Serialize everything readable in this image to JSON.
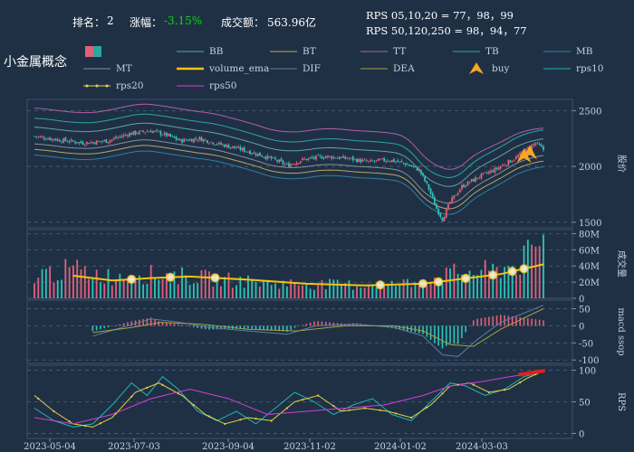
{
  "header": {
    "rank_label": "排名：",
    "rank_value": "2",
    "change_label": "涨幅：",
    "change_value": "-3.15%",
    "volume_label": "成交额：",
    "volume_value": "563.96亿",
    "rps_line1": "RPS 05,10,20 = 77，98，99",
    "rps_line2": "RPS 50,120,250 = 98，94，77",
    "change_color": "#00e000"
  },
  "title": "小金属概念",
  "legend": [
    {
      "label": "",
      "color": "#e0607a",
      "kind": "box"
    },
    {
      "label": "BB",
      "color": "#5fa6a6",
      "kind": "line"
    },
    {
      "label": "BT",
      "color": "#b8a860",
      "kind": "line"
    },
    {
      "label": "TT",
      "color": "#b060a8",
      "kind": "line"
    },
    {
      "label": "TB",
      "color": "#2aa8a0",
      "kind": "line"
    },
    {
      "label": "MB",
      "color": "#3080a0",
      "kind": "line"
    },
    {
      "label": "MT",
      "color": "#8a9098",
      "kind": "line"
    },
    {
      "label": "volume_ema",
      "color": "#f2c40f",
      "kind": "thick"
    },
    {
      "label": "DIF",
      "color": "#5a7fa0",
      "kind": "line"
    },
    {
      "label": "DEA",
      "color": "#a8a040",
      "kind": "line"
    },
    {
      "label": "buy",
      "color": "#f5a623",
      "kind": "triangle"
    },
    {
      "label": "rps10",
      "color": "#1fb5b5",
      "kind": "line"
    },
    {
      "label": "rps20",
      "color": "#e8d040",
      "kind": "dots"
    },
    {
      "label": "rps50",
      "color": "#d040d0",
      "kind": "line"
    }
  ],
  "chart_data": [
    {
      "type": "candlestick",
      "panel": "price",
      "ylabel": "股价",
      "ylim": [
        1450,
        2600
      ],
      "yticks": [
        1500,
        2000,
        2500
      ],
      "grid": true,
      "xticks": [
        "2023-05-04",
        "2023-07-03",
        "2023-09-04",
        "2023-11-02",
        "2024-01-02",
        "2024-03-03"
      ],
      "close_series": [
        {
          "t": 0,
          "v": 2270
        },
        {
          "t": 12,
          "v": 2240
        },
        {
          "t": 25,
          "v": 2210
        },
        {
          "t": 38,
          "v": 2230
        },
        {
          "t": 48,
          "v": 2290
        },
        {
          "t": 60,
          "v": 2320
        },
        {
          "t": 68,
          "v": 2280
        },
        {
          "t": 75,
          "v": 2230
        },
        {
          "t": 85,
          "v": 2250
        },
        {
          "t": 95,
          "v": 2200
        },
        {
          "t": 105,
          "v": 2160
        },
        {
          "t": 115,
          "v": 2110
        },
        {
          "t": 125,
          "v": 2050
        },
        {
          "t": 130,
          "v": 2010
        },
        {
          "t": 138,
          "v": 2060
        },
        {
          "t": 150,
          "v": 2090
        },
        {
          "t": 162,
          "v": 2070
        },
        {
          "t": 172,
          "v": 2040
        },
        {
          "t": 182,
          "v": 2060
        },
        {
          "t": 190,
          "v": 2030
        },
        {
          "t": 198,
          "v": 1970
        },
        {
          "t": 203,
          "v": 1800
        },
        {
          "t": 207,
          "v": 1620
        },
        {
          "t": 210,
          "v": 1530
        },
        {
          "t": 214,
          "v": 1680
        },
        {
          "t": 220,
          "v": 1820
        },
        {
          "t": 228,
          "v": 1900
        },
        {
          "t": 238,
          "v": 1980
        },
        {
          "t": 248,
          "v": 2080
        },
        {
          "t": 254,
          "v": 2160
        },
        {
          "t": 258,
          "v": 2210
        },
        {
          "t": 262,
          "v": 2150
        }
      ],
      "buy_markers": [
        {
          "t": 252,
          "v": 2050
        },
        {
          "t": 255,
          "v": 2080
        }
      ],
      "bands": [
        "TT",
        "MT",
        "BB",
        "BT",
        "TB",
        "MB"
      ]
    },
    {
      "type": "bar",
      "panel": "volume",
      "ylabel": "成交量",
      "yticks": [
        0,
        20,
        40,
        60,
        80
      ],
      "ytick_labels": [
        "0",
        "20M",
        "40M",
        "60M",
        "80M"
      ],
      "ylim": [
        0,
        85
      ],
      "series": [
        {
          "name": "volume_ema",
          "type": "line",
          "points": [
            {
              "t": 20,
              "v": 28
            },
            {
              "t": 40,
              "v": 22
            },
            {
              "t": 60,
              "v": 25
            },
            {
              "t": 80,
              "v": 27
            },
            {
              "t": 110,
              "v": 23
            },
            {
              "t": 140,
              "v": 18
            },
            {
              "t": 170,
              "v": 16
            },
            {
              "t": 200,
              "v": 18
            },
            {
              "t": 220,
              "v": 24
            },
            {
              "t": 240,
              "v": 30
            },
            {
              "t": 262,
              "v": 42
            }
          ]
        }
      ],
      "volume_levels": [
        {
          "t": 0,
          "v": 30
        },
        {
          "t": 20,
          "v": 38
        },
        {
          "t": 40,
          "v": 28
        },
        {
          "t": 50,
          "v": 32
        },
        {
          "t": 70,
          "v": 30
        },
        {
          "t": 90,
          "v": 26
        },
        {
          "t": 120,
          "v": 20
        },
        {
          "t": 150,
          "v": 18
        },
        {
          "t": 180,
          "v": 17
        },
        {
          "t": 200,
          "v": 22
        },
        {
          "t": 215,
          "v": 32
        },
        {
          "t": 235,
          "v": 36
        },
        {
          "t": 250,
          "v": 45
        },
        {
          "t": 262,
          "v": 72
        }
      ],
      "highlight_points": [
        {
          "t": 50
        },
        {
          "t": 70
        },
        {
          "t": 93
        },
        {
          "t": 178
        },
        {
          "t": 200
        },
        {
          "t": 208
        },
        {
          "t": 222
        },
        {
          "t": 236
        },
        {
          "t": 246
        },
        {
          "t": 252
        }
      ]
    },
    {
      "type": "bar",
      "panel": "macd",
      "ylabel": "macd ssop",
      "yticks": [
        -100,
        -50,
        0,
        50
      ],
      "ylim": [
        -110,
        75
      ],
      "series": [
        {
          "name": "DIF",
          "type": "line",
          "points": [
            {
              "t": 30,
              "v": -30
            },
            {
              "t": 45,
              "v": -5
            },
            {
              "t": 60,
              "v": 20
            },
            {
              "t": 75,
              "v": 10
            },
            {
              "t": 90,
              "v": -5
            },
            {
              "t": 110,
              "v": -15
            },
            {
              "t": 130,
              "v": -25
            },
            {
              "t": 145,
              "v": 0
            },
            {
              "t": 165,
              "v": 5
            },
            {
              "t": 185,
              "v": -5
            },
            {
              "t": 200,
              "v": -30
            },
            {
              "t": 210,
              "v": -85
            },
            {
              "t": 218,
              "v": -90
            },
            {
              "t": 228,
              "v": -40
            },
            {
              "t": 240,
              "v": 10
            },
            {
              "t": 262,
              "v": 60
            }
          ]
        },
        {
          "name": "DEA",
          "type": "line",
          "points": [
            {
              "t": 30,
              "v": -20
            },
            {
              "t": 50,
              "v": -5
            },
            {
              "t": 65,
              "v": 10
            },
            {
              "t": 85,
              "v": 5
            },
            {
              "t": 110,
              "v": -10
            },
            {
              "t": 135,
              "v": -15
            },
            {
              "t": 160,
              "v": 0
            },
            {
              "t": 185,
              "v": 0
            },
            {
              "t": 200,
              "v": -15
            },
            {
              "t": 214,
              "v": -55
            },
            {
              "t": 226,
              "v": -60
            },
            {
              "t": 240,
              "v": -10
            },
            {
              "t": 262,
              "v": 50
            }
          ]
        }
      ]
    },
    {
      "type": "line",
      "panel": "rps",
      "ylabel": "RPS",
      "yticks": [
        0,
        50,
        100
      ],
      "ylim": [
        -8,
        108
      ],
      "series": [
        {
          "name": "rps10",
          "points": [
            {
              "t": 0,
              "v": 40
            },
            {
              "t": 10,
              "v": 20
            },
            {
              "t": 20,
              "v": 10
            },
            {
              "t": 30,
              "v": 15
            },
            {
              "t": 40,
              "v": 45
            },
            {
              "t": 50,
              "v": 80
            },
            {
              "t": 58,
              "v": 60
            },
            {
              "t": 66,
              "v": 90
            },
            {
              "t": 74,
              "v": 70
            },
            {
              "t": 84,
              "v": 35
            },
            {
              "t": 94,
              "v": 20
            },
            {
              "t": 104,
              "v": 35
            },
            {
              "t": 114,
              "v": 15
            },
            {
              "t": 124,
              "v": 40
            },
            {
              "t": 134,
              "v": 65
            },
            {
              "t": 144,
              "v": 50
            },
            {
              "t": 154,
              "v": 30
            },
            {
              "t": 164,
              "v": 45
            },
            {
              "t": 174,
              "v": 55
            },
            {
              "t": 184,
              "v": 30
            },
            {
              "t": 194,
              "v": 20
            },
            {
              "t": 204,
              "v": 50
            },
            {
              "t": 214,
              "v": 80
            },
            {
              "t": 222,
              "v": 75
            },
            {
              "t": 232,
              "v": 60
            },
            {
              "t": 242,
              "v": 70
            },
            {
              "t": 252,
              "v": 90
            },
            {
              "t": 262,
              "v": 98
            }
          ]
        },
        {
          "name": "rps20",
          "points": [
            {
              "t": 0,
              "v": 60
            },
            {
              "t": 10,
              "v": 35
            },
            {
              "t": 20,
              "v": 15
            },
            {
              "t": 30,
              "v": 10
            },
            {
              "t": 40,
              "v": 25
            },
            {
              "t": 52,
              "v": 65
            },
            {
              "t": 64,
              "v": 80
            },
            {
              "t": 76,
              "v": 60
            },
            {
              "t": 88,
              "v": 30
            },
            {
              "t": 98,
              "v": 15
            },
            {
              "t": 110,
              "v": 25
            },
            {
              "t": 122,
              "v": 20
            },
            {
              "t": 134,
              "v": 50
            },
            {
              "t": 146,
              "v": 60
            },
            {
              "t": 158,
              "v": 35
            },
            {
              "t": 170,
              "v": 40
            },
            {
              "t": 182,
              "v": 35
            },
            {
              "t": 194,
              "v": 25
            },
            {
              "t": 204,
              "v": 45
            },
            {
              "t": 214,
              "v": 75
            },
            {
              "t": 224,
              "v": 80
            },
            {
              "t": 234,
              "v": 65
            },
            {
              "t": 244,
              "v": 70
            },
            {
              "t": 254,
              "v": 88
            },
            {
              "t": 262,
              "v": 99
            }
          ]
        },
        {
          "name": "rps50",
          "points": [
            {
              "t": 0,
              "v": 25
            },
            {
              "t": 20,
              "v": 15
            },
            {
              "t": 40,
              "v": 30
            },
            {
              "t": 60,
              "v": 55
            },
            {
              "t": 80,
              "v": 70
            },
            {
              "t": 100,
              "v": 55
            },
            {
              "t": 120,
              "v": 30
            },
            {
              "t": 140,
              "v": 35
            },
            {
              "t": 160,
              "v": 40
            },
            {
              "t": 180,
              "v": 45
            },
            {
              "t": 200,
              "v": 60
            },
            {
              "t": 214,
              "v": 75
            },
            {
              "t": 230,
              "v": 82
            },
            {
              "t": 245,
              "v": 90
            },
            {
              "t": 262,
              "v": 98
            }
          ]
        }
      ]
    }
  ]
}
